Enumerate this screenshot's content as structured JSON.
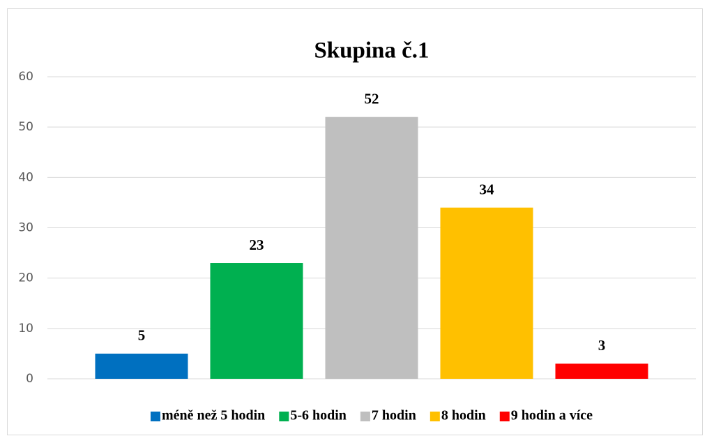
{
  "chart_data": {
    "type": "bar",
    "title": "Skupina č.1",
    "categories": [
      null
    ],
    "series": [
      {
        "name": "méně než 5 hodin",
        "color": "#0070c0",
        "values": [
          5
        ]
      },
      {
        "name": "5-6 hodin",
        "color": "#00b050",
        "values": [
          23
        ]
      },
      {
        "name": "7 hodin",
        "color": "#bfbfbf",
        "values": [
          52
        ]
      },
      {
        "name": "8 hodin",
        "color": "#ffc000",
        "values": [
          34
        ]
      },
      {
        "name": "9 hodin a více",
        "color": "#ff0000",
        "values": [
          3
        ]
      }
    ],
    "ylim": [
      0,
      60
    ],
    "yticks": [
      0,
      10,
      20,
      30,
      40,
      50,
      60
    ],
    "grid": true,
    "legend": "bottom"
  }
}
